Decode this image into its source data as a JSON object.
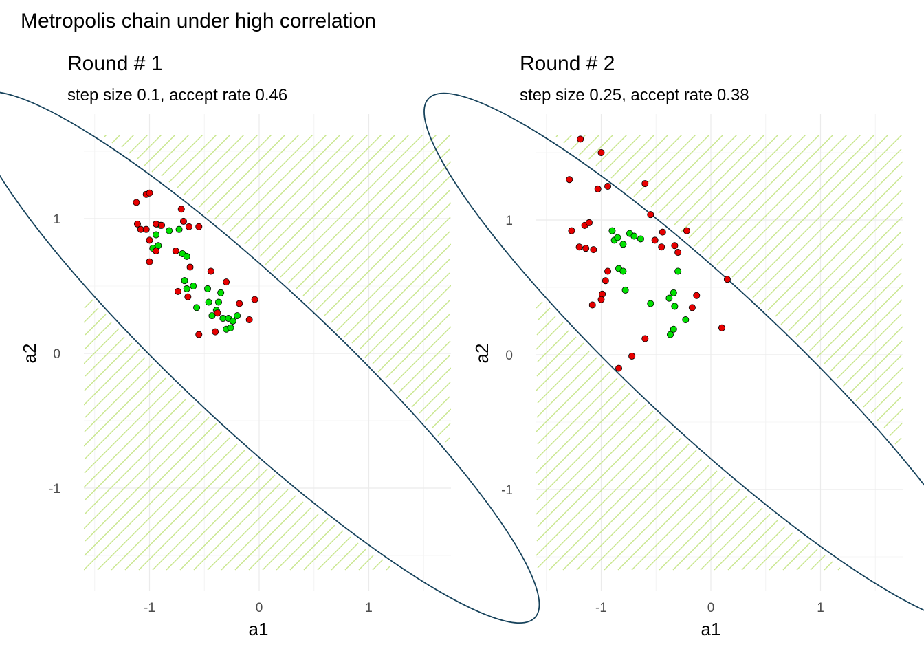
{
  "figure": {
    "title": "Metropolis chain under high correlation"
  },
  "colors": {
    "ellipse": "#16425b",
    "hatch": "#c8e68c",
    "accepted": "#00e000",
    "rejected": "#e60000",
    "grid_major": "#ebebeb",
    "grid_minor": "#f4f4f4",
    "tick_text": "#4d4d4d"
  },
  "chart_data": [
    {
      "type": "scatter",
      "title": "Round # 1",
      "subtitle": "step size 0.1, accept rate 0.46",
      "xlabel": "a1",
      "ylabel": "a2",
      "xlim": [
        -1.6,
        1.6
      ],
      "ylim": [
        -1.6,
        1.6
      ],
      "x_ticks": [
        -1,
        0,
        1
      ],
      "x_tick_labels": [
        "-1",
        "0",
        "1"
      ],
      "y_ticks": [
        -1,
        0,
        1
      ],
      "y_tick_labels": [
        "-1",
        "0",
        "1"
      ],
      "grid": true,
      "series": [
        {
          "status": "accepted",
          "points": [
            [
              -0.97,
              0.78
            ],
            [
              -0.94,
              0.88
            ],
            [
              -0.92,
              0.8
            ],
            [
              -0.9,
              0.95
            ],
            [
              -0.82,
              0.91
            ],
            [
              -0.73,
              0.92
            ],
            [
              -0.7,
              0.74
            ],
            [
              -0.66,
              0.72
            ],
            [
              -0.68,
              0.54
            ],
            [
              -0.66,
              0.48
            ],
            [
              -0.6,
              0.5
            ],
            [
              -0.57,
              0.34
            ],
            [
              -0.47,
              0.48
            ],
            [
              -0.46,
              0.38
            ],
            [
              -0.43,
              0.28
            ],
            [
              -0.39,
              0.32
            ],
            [
              -0.37,
              0.38
            ],
            [
              -0.35,
              0.45
            ],
            [
              -0.33,
              0.26
            ],
            [
              -0.3,
              0.18
            ],
            [
              -0.28,
              0.26
            ],
            [
              -0.26,
              0.19
            ],
            [
              -0.24,
              0.24
            ],
            [
              -0.2,
              0.28
            ]
          ]
        },
        {
          "status": "rejected",
          "points": [
            [
              -1.12,
              1.12
            ],
            [
              -1.03,
              1.18
            ],
            [
              -1.0,
              1.19
            ],
            [
              -1.11,
              0.96
            ],
            [
              -1.08,
              0.92
            ],
            [
              -1.03,
              0.92
            ],
            [
              -1.0,
              0.84
            ],
            [
              -0.94,
              0.96
            ],
            [
              -0.89,
              0.95
            ],
            [
              -0.94,
              0.76
            ],
            [
              -1.0,
              0.68
            ],
            [
              -0.76,
              0.76
            ],
            [
              -0.71,
              1.07
            ],
            [
              -0.69,
              0.98
            ],
            [
              -0.64,
              0.94
            ],
            [
              -0.55,
              0.94
            ],
            [
              -0.63,
              0.64
            ],
            [
              -0.74,
              0.46
            ],
            [
              -0.65,
              0.42
            ],
            [
              -0.44,
              0.61
            ],
            [
              -0.3,
              0.53
            ],
            [
              -0.4,
              0.16
            ],
            [
              -0.55,
              0.14
            ],
            [
              -0.38,
              0.3
            ],
            [
              -0.18,
              0.37
            ],
            [
              -0.09,
              0.25
            ],
            [
              -0.04,
              0.4
            ]
          ]
        }
      ]
    },
    {
      "type": "scatter",
      "title": "Round # 2",
      "subtitle": "step size 0.25, accept rate 0.38",
      "xlabel": "a1",
      "ylabel": "a2",
      "xlim": [
        -1.6,
        1.6
      ],
      "ylim": [
        -1.6,
        1.6
      ],
      "x_ticks": [
        -1,
        0,
        1
      ],
      "x_tick_labels": [
        "-1",
        "0",
        "1"
      ],
      "y_ticks": [
        -1,
        0,
        1
      ],
      "y_tick_labels": [
        "-1",
        "0",
        "1"
      ],
      "grid": true,
      "series": [
        {
          "status": "accepted",
          "points": [
            [
              -0.9,
              0.92
            ],
            [
              -0.88,
              0.85
            ],
            [
              -0.85,
              0.87
            ],
            [
              -0.8,
              0.82
            ],
            [
              -0.74,
              0.9
            ],
            [
              -0.7,
              0.88
            ],
            [
              -0.64,
              0.86
            ],
            [
              -0.84,
              0.64
            ],
            [
              -0.8,
              0.62
            ],
            [
              -0.78,
              0.48
            ],
            [
              -0.55,
              0.38
            ],
            [
              -0.38,
              0.42
            ],
            [
              -0.34,
              0.46
            ],
            [
              -0.33,
              0.36
            ],
            [
              -0.3,
              0.62
            ],
            [
              -0.23,
              0.26
            ],
            [
              -0.34,
              0.19
            ],
            [
              -0.37,
              0.15
            ]
          ]
        },
        {
          "status": "rejected",
          "points": [
            [
              -1.19,
              1.6
            ],
            [
              -1.0,
              1.5
            ],
            [
              -1.29,
              1.3
            ],
            [
              -1.03,
              1.23
            ],
            [
              -0.94,
              1.25
            ],
            [
              -0.6,
              1.27
            ],
            [
              -1.27,
              0.92
            ],
            [
              -1.15,
              0.96
            ],
            [
              -1.11,
              0.98
            ],
            [
              -1.2,
              0.8
            ],
            [
              -1.14,
              0.79
            ],
            [
              -1.07,
              0.78
            ],
            [
              -0.55,
              1.04
            ],
            [
              -0.44,
              0.91
            ],
            [
              -0.51,
              0.85
            ],
            [
              -0.45,
              0.8
            ],
            [
              -0.33,
              0.81
            ],
            [
              -0.3,
              0.76
            ],
            [
              -0.22,
              0.92
            ],
            [
              -0.94,
              0.62
            ],
            [
              -0.96,
              0.55
            ],
            [
              -0.99,
              0.45
            ],
            [
              -1.0,
              0.41
            ],
            [
              -1.08,
              0.37
            ],
            [
              -0.84,
              -0.1
            ],
            [
              -0.72,
              -0.01
            ],
            [
              -0.6,
              0.12
            ],
            [
              -0.13,
              0.44
            ],
            [
              -0.17,
              0.35
            ],
            [
              0.1,
              0.2
            ],
            [
              0.15,
              0.56
            ]
          ]
        }
      ]
    }
  ]
}
